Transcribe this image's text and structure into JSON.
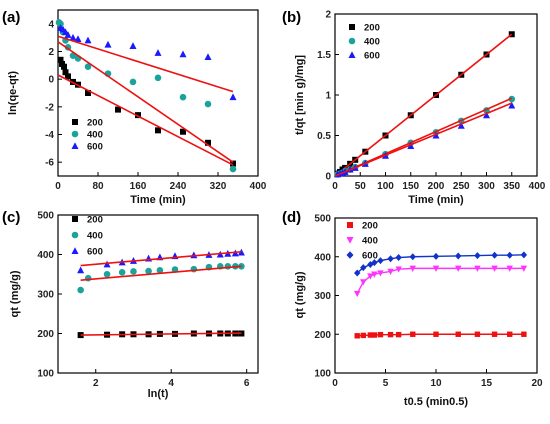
{
  "colors": {
    "black": "#000000",
    "teal": "#1aa39a",
    "blue": "#1a1aff",
    "red": "#ee1111",
    "magenta": "#ff33ff",
    "navy": "#1133cc"
  },
  "chart_data": [
    {
      "panel_label": "(a)",
      "type": "scatter",
      "xlabel": "Time (min)",
      "ylabel": "ln(qe-qt)",
      "xlim": [
        0,
        400
      ],
      "ylim": [
        -7,
        5
      ],
      "xticks": [
        0,
        80,
        160,
        240,
        320,
        400
      ],
      "yticks": [
        -6,
        -4,
        -2,
        0,
        2,
        4
      ],
      "legend_position": "bottom-left",
      "series": [
        {
          "name": "200",
          "marker": "square",
          "color": "#000000",
          "x": [
            5,
            8,
            12,
            15,
            20,
            30,
            40,
            60,
            120,
            160,
            200,
            250,
            300,
            350
          ],
          "y": [
            1.4,
            1.1,
            0.9,
            0.5,
            0.2,
            -0.2,
            -0.4,
            -1.0,
            -2.2,
            -2.6,
            -3.7,
            -3.8,
            -4.6,
            -6.1
          ],
          "fit": [
            [
              0,
              0.3
            ],
            [
              350,
              -6.2
            ]
          ]
        },
        {
          "name": "400",
          "marker": "circle",
          "color": "#1aa39a",
          "x": [
            2,
            5,
            10,
            15,
            20,
            30,
            40,
            60,
            100,
            150,
            200,
            250,
            300,
            350
          ],
          "y": [
            4.1,
            4.0,
            3.4,
            2.8,
            2.3,
            1.7,
            1.5,
            0.9,
            0.4,
            -0.2,
            0.1,
            -1.3,
            -1.8,
            -6.5
          ],
          "fit": [
            [
              0,
              2.7
            ],
            [
              350,
              -6.0
            ]
          ]
        },
        {
          "name": "600",
          "marker": "triangle",
          "color": "#1a1aff",
          "x": [
            5,
            10,
            15,
            20,
            30,
            40,
            60,
            100,
            150,
            200,
            250,
            300,
            350
          ],
          "y": [
            3.7,
            3.6,
            3.4,
            3.2,
            3.0,
            2.9,
            2.8,
            2.5,
            2.4,
            1.9,
            1.8,
            1.6,
            -1.3
          ],
          "fit": [
            [
              0,
              3.1
            ],
            [
              350,
              -0.9
            ]
          ]
        }
      ]
    },
    {
      "panel_label": "(b)",
      "type": "scatter",
      "xlabel": "Time (min)",
      "ylabel": "t/qt [min g)/mg]",
      "xlim": [
        0,
        400
      ],
      "ylim": [
        0,
        2
      ],
      "xticks": [
        0,
        50,
        100,
        150,
        200,
        250,
        300,
        350,
        400
      ],
      "yticks": [
        0.0,
        0.5,
        1.0,
        1.5,
        2.0
      ],
      "legend_position": "top-left",
      "series": [
        {
          "name": "200",
          "marker": "square",
          "color": "#000000",
          "x": [
            5,
            10,
            15,
            20,
            30,
            40,
            60,
            100,
            150,
            200,
            250,
            300,
            350
          ],
          "y": [
            0.03,
            0.05,
            0.08,
            0.1,
            0.15,
            0.2,
            0.3,
            0.5,
            0.75,
            1.0,
            1.25,
            1.5,
            1.75
          ],
          "fit": [
            [
              0,
              0
            ],
            [
              350,
              1.75
            ]
          ]
        },
        {
          "name": "400",
          "marker": "circle",
          "color": "#1aa39a",
          "x": [
            5,
            10,
            15,
            20,
            30,
            40,
            60,
            100,
            150,
            200,
            250,
            300,
            350
          ],
          "y": [
            0.02,
            0.03,
            0.04,
            0.06,
            0.08,
            0.11,
            0.16,
            0.27,
            0.41,
            0.54,
            0.68,
            0.81,
            0.95
          ],
          "fit": [
            [
              0,
              0
            ],
            [
              350,
              0.96
            ]
          ]
        },
        {
          "name": "600",
          "marker": "triangle",
          "color": "#1a1aff",
          "x": [
            5,
            10,
            15,
            20,
            30,
            40,
            60,
            100,
            150,
            200,
            250,
            300,
            350
          ],
          "y": [
            0.02,
            0.03,
            0.04,
            0.05,
            0.08,
            0.1,
            0.15,
            0.25,
            0.37,
            0.5,
            0.62,
            0.75,
            0.87
          ],
          "fit": [
            [
              0,
              0
            ],
            [
              350,
              0.9
            ]
          ]
        }
      ]
    },
    {
      "panel_label": "(c)",
      "type": "scatter",
      "xlabel": "ln(t)",
      "ylabel": "qt (mg/g)",
      "xlim": [
        1,
        6.3
      ],
      "ylim": [
        100,
        500
      ],
      "xticks": [
        2,
        4,
        6
      ],
      "yticks": [
        100,
        200,
        300,
        400,
        500
      ],
      "legend_position": "top-left",
      "series": [
        {
          "name": "200",
          "marker": "square",
          "color": "#000000",
          "x": [
            1.6,
            2.3,
            2.7,
            3.0,
            3.4,
            3.7,
            4.1,
            4.6,
            5.0,
            5.3,
            5.5,
            5.7,
            5.86
          ],
          "y": [
            196,
            197,
            198,
            198,
            198,
            199,
            199,
            200,
            200,
            200,
            200,
            200,
            200
          ],
          "fit": [
            [
              1.6,
              196
            ],
            [
              5.86,
              201
            ]
          ]
        },
        {
          "name": "400",
          "marker": "circle",
          "color": "#1aa39a",
          "x": [
            1.6,
            1.8,
            2.3,
            2.7,
            3.0,
            3.4,
            3.7,
            4.1,
            4.6,
            5.0,
            5.3,
            5.5,
            5.7,
            5.86
          ],
          "y": [
            310,
            340,
            350,
            355,
            357,
            358,
            360,
            362,
            363,
            368,
            370,
            370,
            370,
            370
          ],
          "fit": [
            [
              1.6,
              335
            ],
            [
              5.86,
              370
            ]
          ]
        },
        {
          "name": "600",
          "marker": "triangle",
          "color": "#1a1aff",
          "x": [
            1.6,
            2.3,
            2.7,
            3.0,
            3.4,
            3.7,
            4.1,
            4.6,
            5.0,
            5.3,
            5.5,
            5.7,
            5.86
          ],
          "y": [
            360,
            375,
            380,
            384,
            390,
            393,
            396,
            398,
            399,
            400,
            402,
            403,
            405
          ],
          "fit": [
            [
              1.6,
              372
            ],
            [
              5.86,
              407
            ]
          ]
        }
      ]
    },
    {
      "panel_label": "(d)",
      "type": "line",
      "xlabel": "t0.5 (min0.5)",
      "ylabel": "qt (mg/g)",
      "xlim": [
        0,
        20
      ],
      "ylim": [
        100,
        500
      ],
      "xticks": [
        0,
        5,
        10,
        15,
        20
      ],
      "yticks": [
        100,
        200,
        300,
        400,
        500
      ],
      "legend_position": "top-left",
      "series": [
        {
          "name": "200",
          "marker": "square",
          "color": "#ee1111",
          "x": [
            2.2,
            2.8,
            3.5,
            3.9,
            4.5,
            5.5,
            6.3,
            7.7,
            10.0,
            12.2,
            14.1,
            15.8,
            17.3,
            18.7
          ],
          "y": [
            196,
            197,
            198,
            198,
            199,
            199,
            199,
            200,
            200,
            200,
            200,
            200,
            200,
            200
          ]
        },
        {
          "name": "400",
          "marker": "triangle-down",
          "color": "#ff33ff",
          "x": [
            2.2,
            2.8,
            3.5,
            3.9,
            4.5,
            5.5,
            6.3,
            7.7,
            10.0,
            12.2,
            14.1,
            15.8,
            17.3,
            18.7
          ],
          "y": [
            305,
            335,
            350,
            355,
            358,
            362,
            368,
            370,
            370,
            370,
            370,
            370,
            370,
            370
          ]
        },
        {
          "name": "600",
          "marker": "diamond",
          "color": "#1133cc",
          "x": [
            2.2,
            2.8,
            3.5,
            3.9,
            4.5,
            5.5,
            6.3,
            7.7,
            10.0,
            12.2,
            14.1,
            15.8,
            17.3,
            18.7
          ],
          "y": [
            358,
            372,
            380,
            385,
            390,
            395,
            398,
            400,
            401,
            402,
            403,
            404,
            404,
            405
          ]
        }
      ]
    }
  ]
}
